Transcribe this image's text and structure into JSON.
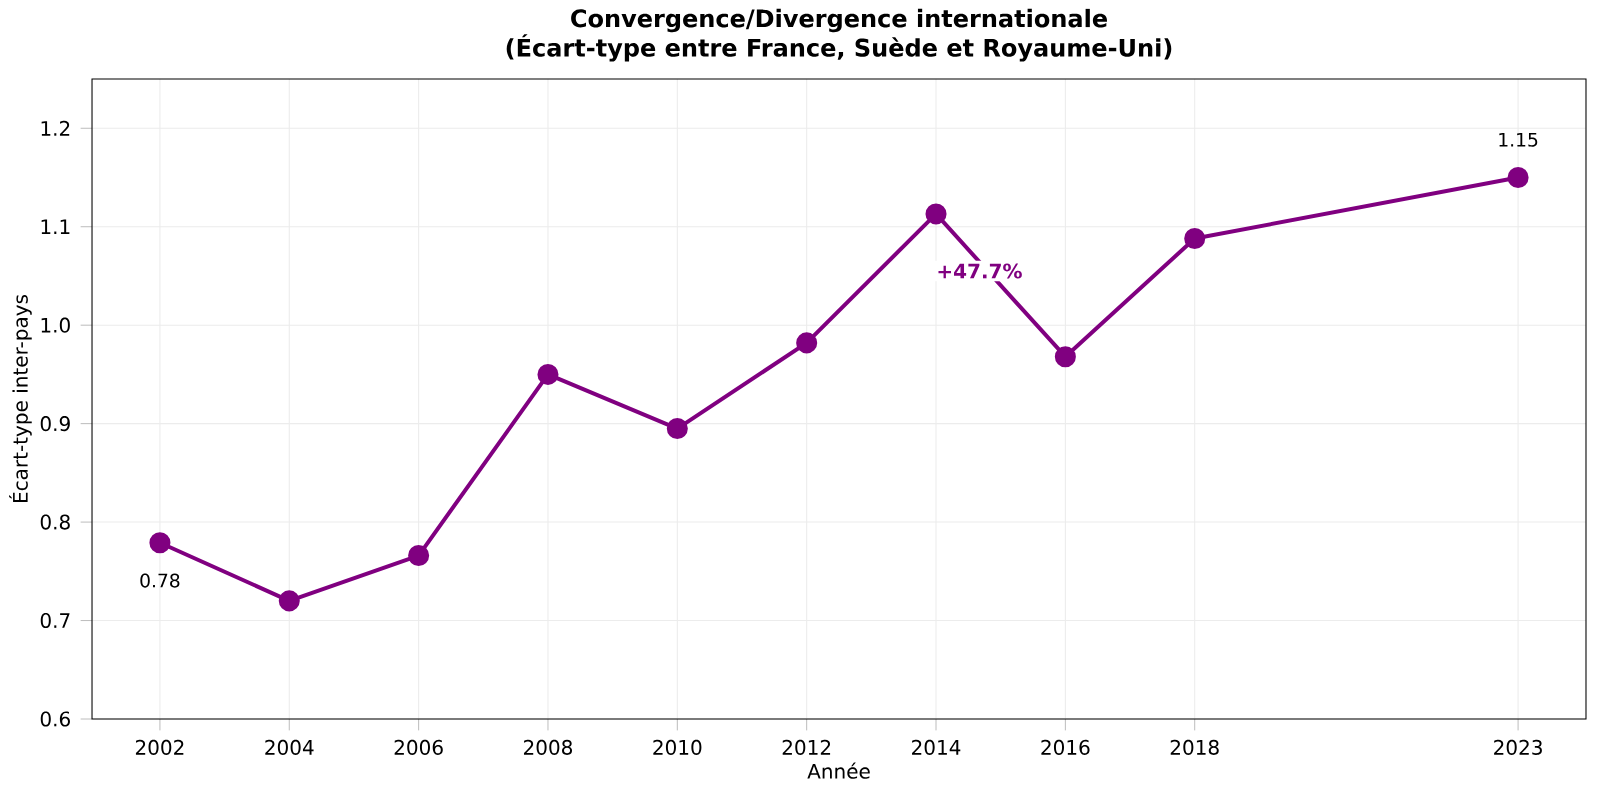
{
  "chart_data": {
    "type": "line",
    "title": "Convergence/Divergence internationale",
    "subtitle": "(Écart-type entre France, Suède et Royaume-Uni)",
    "xlabel": "Année",
    "ylabel": "Écart-type inter-pays",
    "x": [
      2002,
      2004,
      2006,
      2008,
      2010,
      2012,
      2014,
      2016,
      2018,
      2023
    ],
    "series": [
      {
        "color": "#800080",
        "values": [
          0.779,
          0.72,
          0.766,
          0.95,
          0.895,
          0.982,
          1.113,
          0.968,
          1.088,
          1.15
        ],
        "value_labels": [
          "0.78",
          null,
          null,
          null,
          null,
          null,
          null,
          null,
          null,
          "1.15"
        ]
      }
    ],
    "annotations": [
      "+47.7%"
    ],
    "xlim": [
      2000.95,
      2024.05
    ],
    "ylim": [
      0.6,
      1.25
    ],
    "xticks": [
      2002,
      2004,
      2006,
      2008,
      2010,
      2012,
      2014,
      2016,
      2018,
      2023
    ],
    "yticks": [
      {
        "value": 0.6,
        "label": "0.6"
      },
      {
        "value": 0.7,
        "label": "0.7"
      },
      {
        "value": 0.8,
        "label": "0.8"
      },
      {
        "value": 0.9,
        "label": "0.9"
      },
      {
        "value": 1.0,
        "label": "1.0"
      },
      {
        "value": 1.1,
        "label": "1.1"
      },
      {
        "value": 1.2,
        "label": "1.2"
      }
    ],
    "grid": true,
    "marker": "circle",
    "line_style": "solid"
  }
}
